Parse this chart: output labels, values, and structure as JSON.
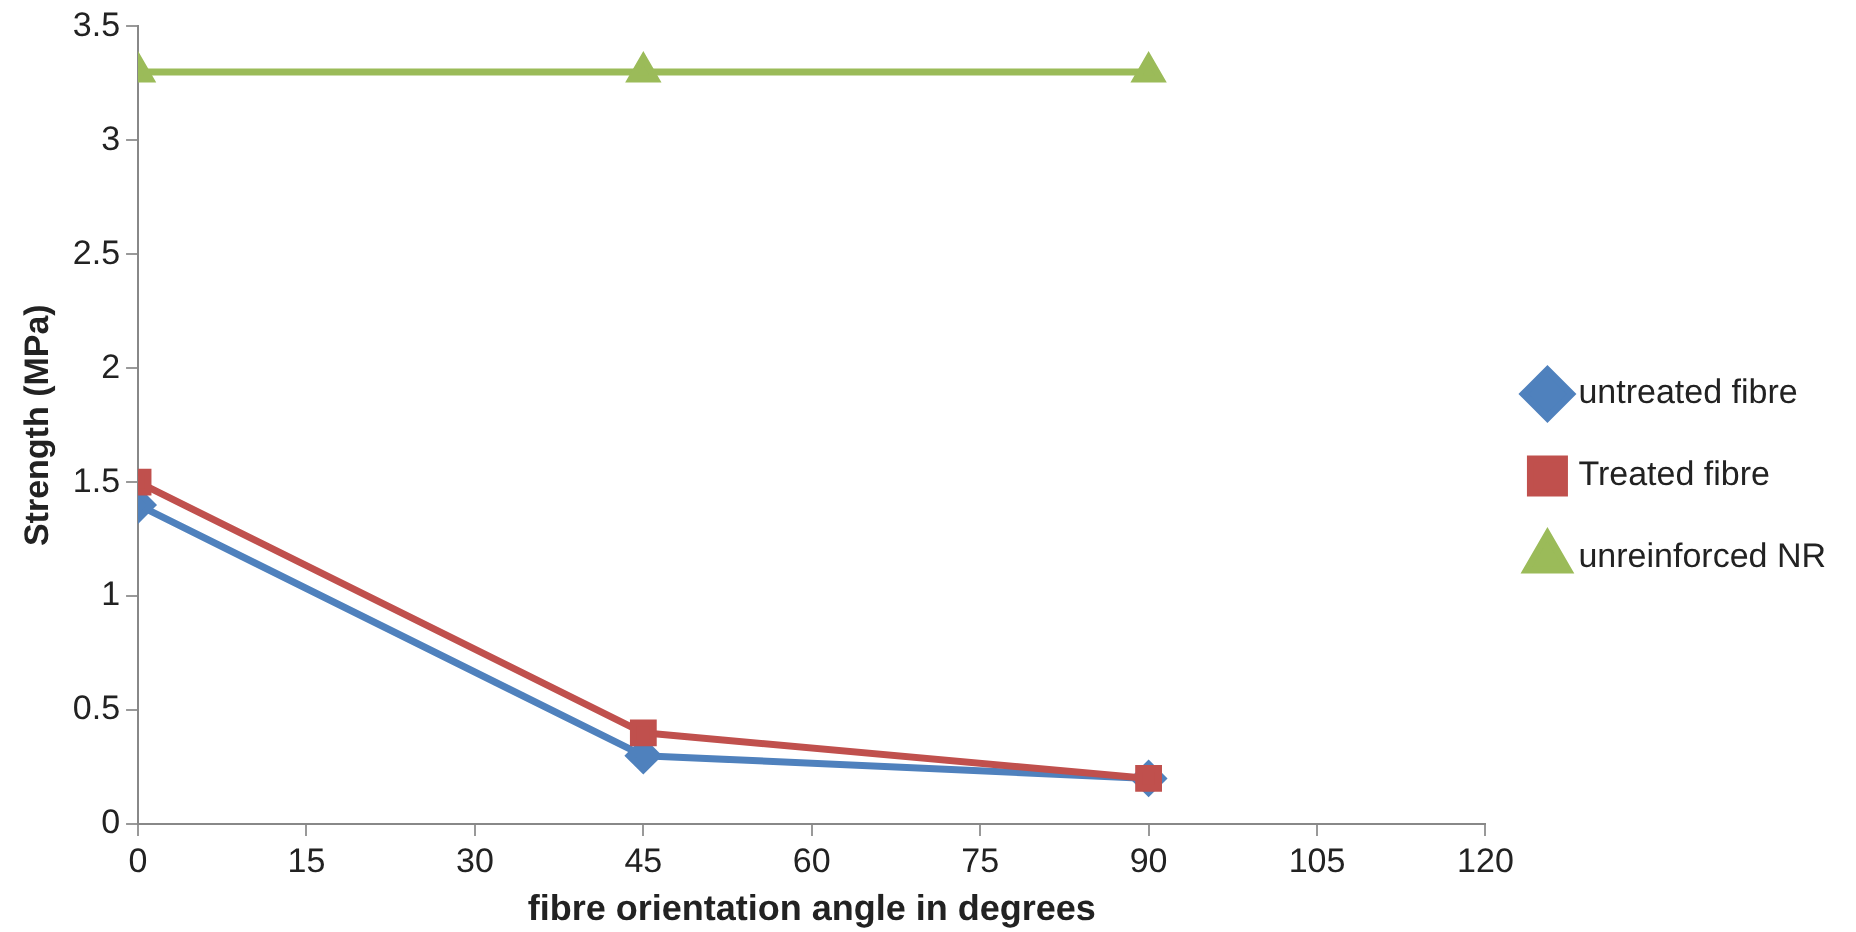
{
  "chart_data": {
    "type": "line",
    "xlabel": "fibre orientation angle in degrees",
    "ylabel": "Strength (MPa)",
    "x": [
      0,
      45,
      90
    ],
    "series": [
      {
        "name": "untreated fibre",
        "color": "#4f81bd",
        "values": [
          1.4,
          0.3,
          0.2
        ],
        "marker": "diamond"
      },
      {
        "name": "Treated fibre",
        "color": "#c0504d",
        "values": [
          1.5,
          0.4,
          0.2
        ],
        "marker": "square"
      },
      {
        "name": "unreinforced NR",
        "color": "#9bbb59",
        "values": [
          3.3,
          3.3,
          3.3
        ],
        "marker": "triangle"
      }
    ],
    "xlim": [
      0,
      120
    ],
    "xticks": [
      0,
      15,
      30,
      45,
      60,
      75,
      90,
      105,
      120
    ],
    "ylim": [
      0,
      3.5
    ],
    "yticks": [
      0,
      0.5,
      1,
      1.5,
      2,
      2.5,
      3,
      3.5
    ],
    "grid": false,
    "legend": "right",
    "line_style": "solid"
  }
}
